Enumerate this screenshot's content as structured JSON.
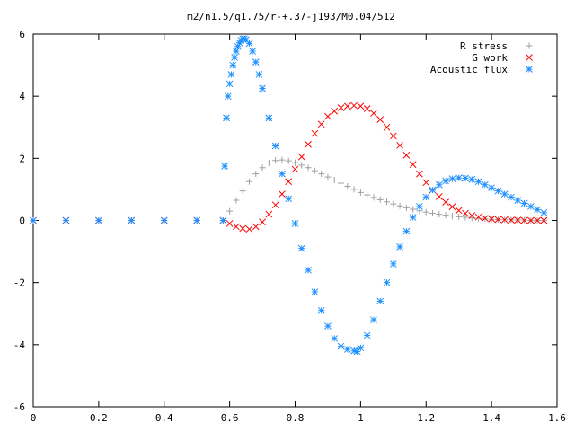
{
  "chart_data": {
    "type": "scatter",
    "title": "m2/n1.5/q1.75/r-+.37-j193/M0.04/512",
    "xlabel": "",
    "ylabel": "",
    "xlim": [
      0,
      1.6
    ],
    "ylim": [
      -6,
      6
    ],
    "x_ticks": [
      "0",
      "0.2",
      "0.4",
      "0.6",
      "0.8",
      "1",
      "1.2",
      "1.4",
      "1.6"
    ],
    "y_ticks": [
      "-6",
      "-4",
      "-2",
      "0",
      "2",
      "4",
      "6"
    ],
    "grid": false,
    "legend_position": "top-right",
    "series": [
      {
        "name": "R stress",
        "marker": "plus",
        "color": "#a0a0a0",
        "x": [
          0.0,
          0.1,
          0.2,
          0.3,
          0.4,
          0.5,
          0.58,
          0.6,
          0.62,
          0.64,
          0.66,
          0.68,
          0.7,
          0.72,
          0.74,
          0.76,
          0.78,
          0.8,
          0.82,
          0.84,
          0.86,
          0.88,
          0.9,
          0.92,
          0.94,
          0.96,
          0.98,
          1.0,
          1.02,
          1.04,
          1.06,
          1.08,
          1.1,
          1.12,
          1.14,
          1.16,
          1.18,
          1.2,
          1.22,
          1.24,
          1.26,
          1.28,
          1.3,
          1.32,
          1.34,
          1.36,
          1.38,
          1.4,
          1.42,
          1.44,
          1.46,
          1.48,
          1.5,
          1.52,
          1.54,
          1.56
        ],
        "y": [
          0,
          0,
          0,
          0,
          0,
          0,
          0,
          0.3,
          0.65,
          0.95,
          1.25,
          1.5,
          1.7,
          1.85,
          1.93,
          1.95,
          1.92,
          1.86,
          1.78,
          1.7,
          1.6,
          1.5,
          1.4,
          1.3,
          1.2,
          1.1,
          1.0,
          0.9,
          0.82,
          0.74,
          0.67,
          0.6,
          0.53,
          0.47,
          0.41,
          0.36,
          0.31,
          0.27,
          0.23,
          0.2,
          0.17,
          0.14,
          0.12,
          0.1,
          0.08,
          0.07,
          0.05,
          0.04,
          0.03,
          0.02,
          0.02,
          0.01,
          0.01,
          0.0,
          0.0,
          0.0
        ]
      },
      {
        "name": "G work",
        "marker": "cross",
        "color": "#ff0000",
        "x": [
          0.0,
          0.1,
          0.2,
          0.3,
          0.4,
          0.5,
          0.58,
          0.6,
          0.62,
          0.64,
          0.66,
          0.68,
          0.7,
          0.72,
          0.74,
          0.76,
          0.78,
          0.8,
          0.82,
          0.84,
          0.86,
          0.88,
          0.9,
          0.92,
          0.94,
          0.96,
          0.98,
          1.0,
          1.02,
          1.04,
          1.06,
          1.08,
          1.1,
          1.12,
          1.14,
          1.16,
          1.18,
          1.2,
          1.22,
          1.24,
          1.26,
          1.28,
          1.3,
          1.32,
          1.34,
          1.36,
          1.38,
          1.4,
          1.42,
          1.44,
          1.46,
          1.48,
          1.5,
          1.52,
          1.54,
          1.56
        ],
        "y": [
          0,
          0,
          0,
          0,
          0,
          0,
          0,
          -0.1,
          -0.2,
          -0.26,
          -0.28,
          -0.2,
          -0.05,
          0.2,
          0.5,
          0.85,
          1.25,
          1.65,
          2.05,
          2.45,
          2.8,
          3.1,
          3.35,
          3.52,
          3.63,
          3.68,
          3.7,
          3.68,
          3.6,
          3.45,
          3.25,
          3.0,
          2.72,
          2.42,
          2.1,
          1.8,
          1.5,
          1.22,
          0.98,
          0.77,
          0.59,
          0.44,
          0.32,
          0.23,
          0.16,
          0.11,
          0.07,
          0.05,
          0.03,
          0.02,
          0.01,
          0.01,
          0.0,
          0.0,
          0.0,
          0.0
        ]
      },
      {
        "name": "Acoustic flux",
        "marker": "star",
        "color": "#1e90ff",
        "x": [
          0.0,
          0.1,
          0.2,
          0.3,
          0.4,
          0.5,
          0.58,
          0.585,
          0.59,
          0.595,
          0.6,
          0.605,
          0.61,
          0.615,
          0.62,
          0.625,
          0.63,
          0.635,
          0.64,
          0.645,
          0.65,
          0.66,
          0.67,
          0.68,
          0.69,
          0.7,
          0.72,
          0.74,
          0.76,
          0.78,
          0.8,
          0.82,
          0.84,
          0.86,
          0.88,
          0.9,
          0.92,
          0.94,
          0.96,
          0.98,
          0.99,
          1.0,
          1.02,
          1.04,
          1.06,
          1.08,
          1.1,
          1.12,
          1.14,
          1.16,
          1.18,
          1.2,
          1.22,
          1.24,
          1.26,
          1.28,
          1.3,
          1.32,
          1.34,
          1.36,
          1.38,
          1.4,
          1.42,
          1.44,
          1.46,
          1.48,
          1.5,
          1.52,
          1.54,
          1.56
        ],
        "y": [
          0,
          0,
          0,
          0,
          0,
          0,
          0,
          1.75,
          3.3,
          4.0,
          4.4,
          4.7,
          5.0,
          5.25,
          5.45,
          5.6,
          5.72,
          5.8,
          5.85,
          5.85,
          5.82,
          5.7,
          5.45,
          5.1,
          4.7,
          4.25,
          3.3,
          2.4,
          1.5,
          0.7,
          -0.1,
          -0.9,
          -1.6,
          -2.3,
          -2.9,
          -3.4,
          -3.8,
          -4.05,
          -4.15,
          -4.2,
          -4.22,
          -4.1,
          -3.7,
          -3.2,
          -2.6,
          -2.0,
          -1.4,
          -0.85,
          -0.35,
          0.1,
          0.45,
          0.75,
          0.98,
          1.15,
          1.27,
          1.34,
          1.37,
          1.36,
          1.32,
          1.25,
          1.15,
          1.05,
          0.95,
          0.85,
          0.75,
          0.65,
          0.55,
          0.45,
          0.35,
          0.25
        ]
      }
    ]
  }
}
